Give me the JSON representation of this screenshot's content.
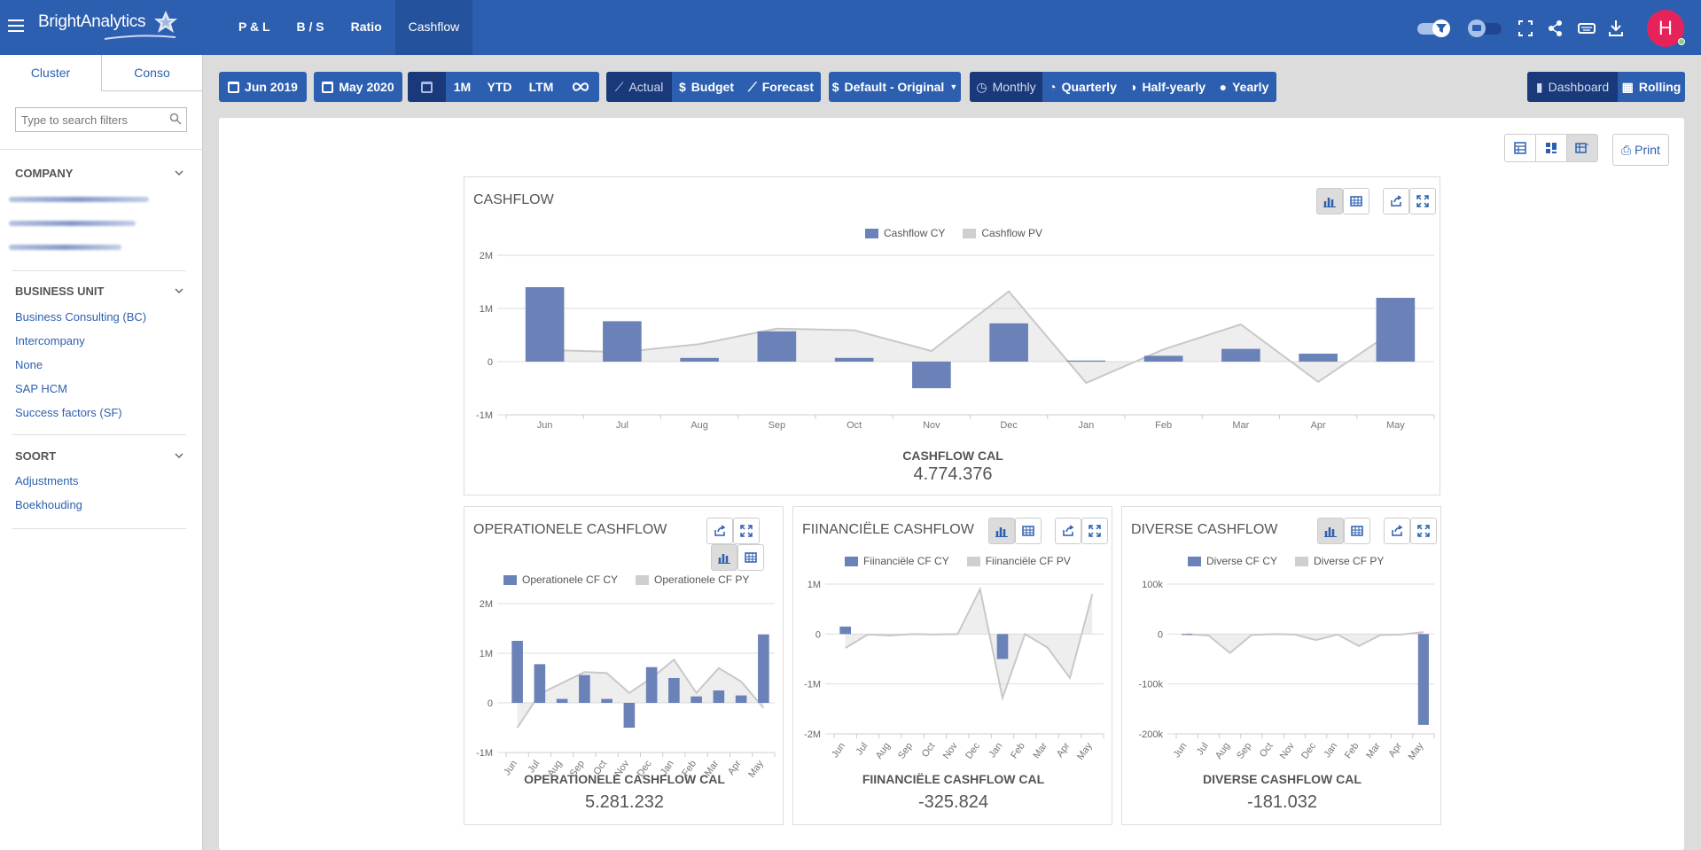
{
  "app": {
    "logo_text": "BrightAnalytics",
    "avatar_letter": "H"
  },
  "nav": [
    "P & L",
    "B / S",
    "Ratio",
    "Cashflow"
  ],
  "sidebar": {
    "tabs": [
      "Cluster",
      "Conso"
    ],
    "search_placeholder": "Type to search filters",
    "sections": [
      {
        "title": "COMPANY",
        "items": []
      },
      {
        "title": "BUSINESS UNIT",
        "items": [
          "Business Consulting (BC)",
          "Intercompany",
          "None",
          "SAP HCM",
          "Success factors (SF)"
        ]
      },
      {
        "title": "SOORT",
        "items": [
          "Adjustments",
          "Boekhouding"
        ]
      }
    ]
  },
  "toolbar": {
    "from": "Jun 2019",
    "to": "May 2020",
    "periods": [
      "1M",
      "YTD",
      "LTM"
    ],
    "scenarios": [
      "Actual",
      "Budget",
      "Forecast"
    ],
    "version": "Default - Original",
    "intervals": [
      "Monthly",
      "Quarterly",
      "Half-yearly",
      "Yearly"
    ],
    "views": [
      "Dashboard",
      "Rolling"
    ],
    "print": "Print"
  },
  "colors": {
    "brand": "#2d5fb0",
    "bar_cy": "#6b82b8",
    "area_py": "#cfcfcf",
    "avatar": "#e5235a"
  },
  "chart_data": [
    {
      "type": "bar",
      "title": "CASHFLOW",
      "categories": [
        "Jun",
        "Jul",
        "Aug",
        "Sep",
        "Oct",
        "Nov",
        "Dec",
        "Jan",
        "Feb",
        "Mar",
        "Apr",
        "May"
      ],
      "series": [
        {
          "name": "Cashflow CY",
          "values": [
            1400000,
            760000,
            70000,
            570000,
            70000,
            -500000,
            720000,
            20000,
            110000,
            240000,
            150000,
            1200000
          ]
        },
        {
          "name": "Cashflow PV",
          "values": [
            220000,
            180000,
            330000,
            620000,
            590000,
            200000,
            1320000,
            -400000,
            230000,
            700000,
            -380000,
            600000
          ]
        }
      ],
      "ylim": [
        -1000000,
        2000000
      ],
      "yticks": [
        "2M",
        "1M",
        "0",
        "-1M"
      ],
      "total_label": "CASHFLOW CAL",
      "total_value": "4.774.376"
    },
    {
      "type": "bar",
      "title": "OPERATIONELE CASHFLOW",
      "categories": [
        "Jun",
        "Jul",
        "Aug",
        "Sep",
        "Oct",
        "Nov",
        "Dec",
        "Jan",
        "Feb",
        "Mar",
        "Apr",
        "May"
      ],
      "series": [
        {
          "name": "Operationele CF CY",
          "values": [
            1250000,
            780000,
            80000,
            560000,
            80000,
            -500000,
            720000,
            500000,
            130000,
            250000,
            150000,
            1380000
          ]
        },
        {
          "name": "Operationele CF PY",
          "values": [
            -500000,
            180000,
            400000,
            620000,
            600000,
            200000,
            500000,
            870000,
            200000,
            700000,
            430000,
            -100000
          ]
        }
      ],
      "ylim": [
        -1000000,
        2000000
      ],
      "yticks": [
        "2M",
        "1M",
        "0",
        "-1M"
      ],
      "total_label": "OPERATIONELE CASHFLOW CAL",
      "total_value": "5.281.232"
    },
    {
      "type": "bar",
      "title": "FIINANCIËLE CASHFLOW",
      "categories": [
        "Jun",
        "Jul",
        "Aug",
        "Sep",
        "Oct",
        "Nov",
        "Dec",
        "Jan",
        "Feb",
        "Mar",
        "Apr",
        "May"
      ],
      "series": [
        {
          "name": "Fiinanciële CF CY",
          "values": [
            150000,
            0,
            0,
            0,
            0,
            0,
            0,
            -500000,
            0,
            0,
            0,
            0
          ]
        },
        {
          "name": "Fiinanciële CF PV",
          "values": [
            -280000,
            -10000,
            -30000,
            0,
            -10000,
            0,
            900000,
            -1280000,
            0,
            -270000,
            -880000,
            800000
          ]
        }
      ],
      "ylim": [
        -2000000,
        1000000
      ],
      "yticks": [
        "1M",
        "0",
        "-1M",
        "-2M"
      ],
      "total_label": "FIINANCIËLE CASHFLOW CAL",
      "total_value": "-325.824"
    },
    {
      "type": "bar",
      "title": "DIVERSE CASHFLOW",
      "categories": [
        "Jun",
        "Jul",
        "Aug",
        "Sep",
        "Oct",
        "Nov",
        "Dec",
        "Jan",
        "Feb",
        "Mar",
        "Apr",
        "May"
      ],
      "series": [
        {
          "name": "Diverse CF CY",
          "values": [
            -2000,
            0,
            0,
            0,
            0,
            0,
            0,
            0,
            0,
            0,
            0,
            -182000
          ]
        },
        {
          "name": "Diverse CF PY",
          "values": [
            0,
            -3000,
            -38000,
            -2000,
            0,
            -1000,
            -12000,
            -1000,
            -24000,
            -2000,
            -1000,
            4000
          ]
        }
      ],
      "ylim": [
        -200000,
        100000
      ],
      "yticks": [
        "100k",
        "0",
        "-100k",
        "-200k"
      ],
      "total_label": "DIVERSE CASHFLOW CAL",
      "total_value": "-181.032"
    }
  ]
}
